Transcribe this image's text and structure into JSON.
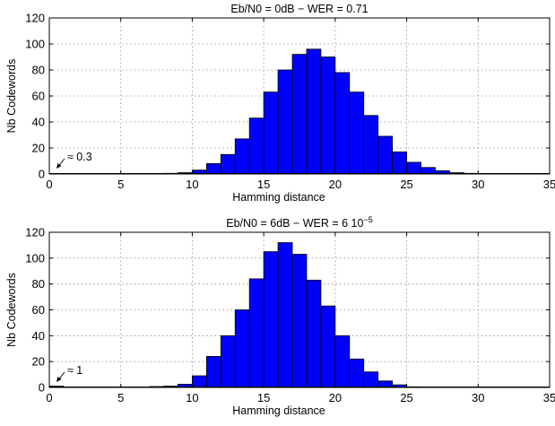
{
  "chart_data": [
    {
      "type": "bar",
      "title": "Eb/N0 = 0dB − WER = 0.71",
      "title_superscript": "",
      "xlabel": "Hamming distance",
      "ylabel": "Nb Codewords",
      "xlim": [
        0,
        35
      ],
      "ylim": [
        0,
        120
      ],
      "xticks": [
        0,
        5,
        10,
        15,
        20,
        25,
        30,
        35
      ],
      "yticks": [
        0,
        20,
        40,
        60,
        80,
        100,
        120
      ],
      "grid": true,
      "bar_color": "#0000ff",
      "x": [
        0,
        1,
        2,
        3,
        4,
        5,
        6,
        7,
        8,
        9,
        10,
        11,
        12,
        13,
        14,
        15,
        16,
        17,
        18,
        19,
        20,
        21,
        22,
        23,
        24,
        25,
        26,
        27,
        28,
        29,
        30,
        31,
        32,
        33,
        34
      ],
      "values": [
        0.3,
        0,
        0,
        0,
        0,
        0,
        0,
        0.3,
        0.5,
        1,
        3,
        8,
        15,
        27,
        43,
        63,
        80,
        92,
        96,
        90,
        78,
        63,
        45,
        29,
        17,
        9,
        5,
        2.5,
        1,
        0.5,
        0.2,
        0.1,
        0,
        0,
        0
      ],
      "annotation": "≈ 0.3"
    },
    {
      "type": "bar",
      "title": "Eb/N0 = 6dB − WER = 6 10",
      "title_superscript": "−5",
      "xlabel": "Hamming distance",
      "ylabel": "Nb Codewords",
      "xlim": [
        0,
        35
      ],
      "ylim": [
        0,
        120
      ],
      "xticks": [
        0,
        5,
        10,
        15,
        20,
        25,
        30,
        35
      ],
      "yticks": [
        0,
        20,
        40,
        60,
        80,
        100,
        120
      ],
      "grid": true,
      "bar_color": "#0000ff",
      "x": [
        0,
        1,
        2,
        3,
        4,
        5,
        6,
        7,
        8,
        9,
        10,
        11,
        12,
        13,
        14,
        15,
        16,
        17,
        18,
        19,
        20,
        21,
        22,
        23,
        24,
        25,
        26,
        27,
        28,
        29,
        30,
        31,
        32,
        33,
        34
      ],
      "values": [
        1,
        0,
        0,
        0,
        0,
        0,
        0,
        0.7,
        1,
        2.5,
        9,
        24,
        40,
        60,
        84,
        105,
        112,
        103,
        83,
        63,
        40,
        22,
        12,
        5,
        2,
        0.5,
        0.2,
        0,
        0,
        0,
        0,
        0,
        0,
        0,
        0
      ],
      "annotation": "≈ 1"
    }
  ]
}
